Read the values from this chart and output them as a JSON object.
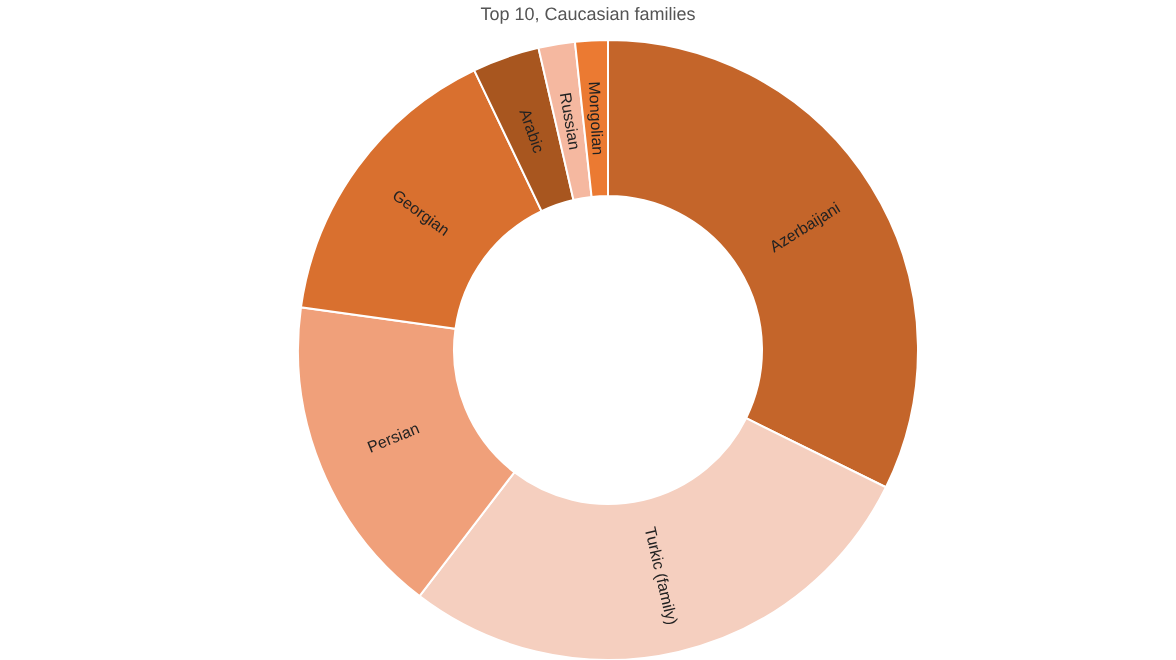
{
  "chart_data": {
    "type": "donut",
    "title": "Top 10, Caucasian families",
    "categories": [
      "Azerbaijani",
      "Turkic (family)",
      "Persian",
      "Georgian",
      "Arabic",
      "Russian",
      "Mongolian"
    ],
    "values": [
      32.3,
      28.1,
      16.8,
      15.7,
      3.5,
      1.9,
      1.7
    ],
    "colors": [
      "#c4652a",
      "#f5cfbf",
      "#f0a07a",
      "#d9702f",
      "#a8561f",
      "#f5b8a0",
      "#eb7a32"
    ],
    "legend": false
  }
}
